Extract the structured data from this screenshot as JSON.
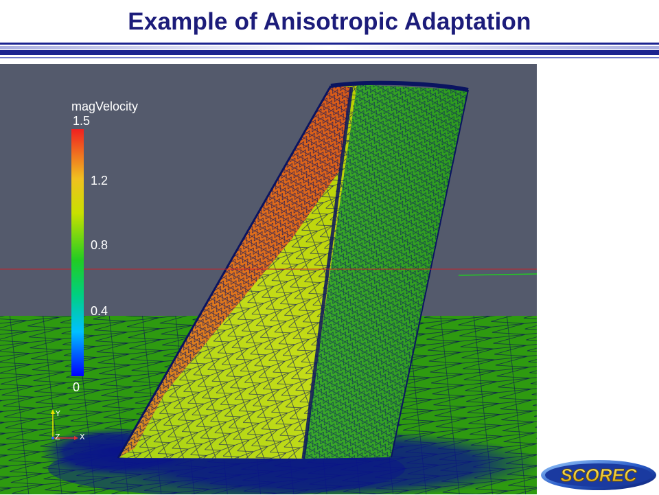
{
  "slide": {
    "title": "Example of Anisotropic Adaptation"
  },
  "colors": {
    "title": "#1c1c7a",
    "rule_dark": "#1b2390",
    "rule_light": "#6f78c8",
    "background": "#545a6c",
    "ground": "#2e9a10",
    "mesh_edge": "#0a1460",
    "plane_line": "#c8222a"
  },
  "legend": {
    "title": "magVelocity",
    "max_label": "1.5",
    "ticks": [
      "1.2",
      "0.8",
      "0.4"
    ],
    "min_label": "0",
    "colormap": [
      "#0000ff",
      "#00c0ff",
      "#00d080",
      "#22cc22",
      "#c8e000",
      "#f0c020",
      "#f07020",
      "#f02020"
    ]
  },
  "axes_triad": {
    "y": "Y",
    "z": "Z",
    "x": "X"
  },
  "logo": {
    "text": "SCOREC"
  }
}
